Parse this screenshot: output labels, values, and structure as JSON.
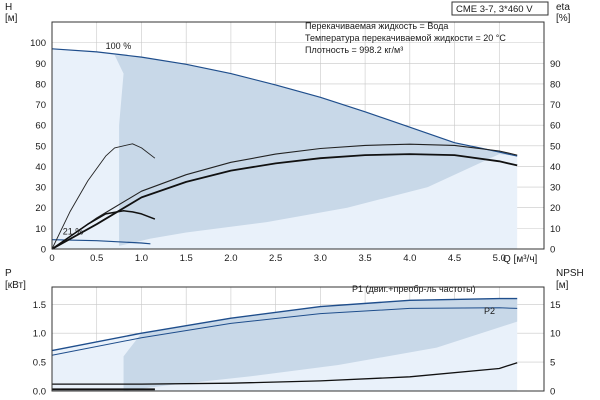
{
  "chart_data": [
    {
      "type": "line",
      "title": "CME 3-7, 3*460 V",
      "annotations": [
        "Перекачиваемая жидкость = Вода",
        "Температура перекачиваемой жидкости = 20 °C",
        "Плотность = 998.2 кг/м³"
      ],
      "ylabel_left": [
        "H",
        "[м]"
      ],
      "ylabel_right": [
        "eta",
        "[%]"
      ],
      "xlabel": "Q [м³/ч]",
      "xlim": [
        0,
        5.5
      ],
      "xticks": [
        0,
        0.5,
        1.0,
        1.5,
        2.0,
        2.5,
        3.0,
        3.5,
        4.0,
        4.5,
        5.0
      ],
      "ylim_left": [
        0,
        110
      ],
      "yticks_left": [
        0,
        10,
        20,
        30,
        40,
        50,
        60,
        70,
        80,
        90,
        100
      ],
      "ylim_right": [
        0,
        110
      ],
      "yticks_right": [
        0,
        10,
        20,
        30,
        40,
        50,
        60,
        70,
        80,
        90
      ],
      "speed_labels": [
        {
          "text": "100 %",
          "x": 0.6,
          "y": 97
        },
        {
          "text": "21 %",
          "x": 0.12,
          "y": 7
        }
      ],
      "series": [
        {
          "role": "head-max",
          "x": [
            0,
            0.5,
            1.0,
            1.5,
            2.0,
            2.5,
            3.0,
            3.5,
            4.0,
            4.5,
            5.0,
            5.2
          ],
          "y": [
            97,
            95.5,
            93,
            89.5,
            85,
            79.5,
            73.5,
            66.5,
            59,
            51.5,
            47,
            45
          ]
        },
        {
          "role": "head-min",
          "x": [
            0,
            0.5,
            1.0,
            1.1
          ],
          "y": [
            4.5,
            4,
            2.9,
            2.5
          ]
        },
        {
          "role": "efficiency-max",
          "x": [
            0,
            0.5,
            1.0,
            1.5,
            2.0,
            2.5,
            3.0,
            3.5,
            4.0,
            4.5,
            5.0,
            5.2
          ],
          "y": [
            0,
            15,
            28,
            36,
            42,
            46,
            48.7,
            50.2,
            50.8,
            50.2,
            47.5,
            45.5
          ]
        },
        {
          "role": "efficiency",
          "x": [
            0,
            0.5,
            1.0,
            1.5,
            2.0,
            2.5,
            3.0,
            3.5,
            4.0,
            4.5,
            5.0,
            5.2
          ],
          "y": [
            0,
            12,
            25,
            32.5,
            38,
            41.5,
            44,
            45.5,
            46,
            45.5,
            42.5,
            40.5
          ]
        },
        {
          "role": "efficiency-low-1",
          "x": [
            0,
            0.2,
            0.4,
            0.6,
            0.7,
            0.9,
            1.0,
            1.15
          ],
          "y": [
            0,
            18,
            33,
            45,
            49,
            51,
            49,
            44
          ]
        },
        {
          "role": "efficiency-low-2",
          "x": [
            0,
            0.2,
            0.4,
            0.6,
            0.8,
            0.9,
            1.0,
            1.15
          ],
          "y": [
            0,
            6,
            12,
            17,
            18.5,
            18,
            17,
            14.5
          ]
        }
      ],
      "grid": true
    },
    {
      "type": "line",
      "ylabel_left": [
        "P",
        "[кВт]"
      ],
      "ylabel_right": [
        "NPSH",
        "[м]"
      ],
      "xlim": [
        0,
        5.5
      ],
      "ylim_left": [
        0,
        1.8
      ],
      "yticks_left": [
        "0.0",
        "0.5",
        "1.0",
        "1.5"
      ],
      "ylim_right": [
        0,
        18
      ],
      "yticks_right": [
        0,
        5,
        10,
        15
      ],
      "series": [
        {
          "name": "P1 (двиг.+преобр-ль частоты)",
          "x": [
            0,
            1.0,
            2.0,
            3.0,
            4.0,
            5.0,
            5.2
          ],
          "y": [
            0.7,
            1.0,
            1.26,
            1.46,
            1.57,
            1.6,
            1.6
          ]
        },
        {
          "name": "P2",
          "x": [
            0,
            1.0,
            2.0,
            3.0,
            4.0,
            5.0,
            5.2
          ],
          "y": [
            0.62,
            0.92,
            1.17,
            1.34,
            1.43,
            1.44,
            1.43
          ]
        },
        {
          "role": "npsh",
          "x": [
            0,
            1.0,
            2.0,
            3.0,
            4.0,
            5.0,
            5.2
          ],
          "y": [
            1.2,
            1.2,
            1.35,
            1.75,
            2.45,
            3.9,
            4.9
          ]
        },
        {
          "role": "power-min",
          "x": [
            0,
            0.5,
            1.0,
            1.15
          ],
          "y": [
            0.03,
            0.03,
            0.03,
            0.03
          ]
        }
      ],
      "grid": true
    }
  ]
}
